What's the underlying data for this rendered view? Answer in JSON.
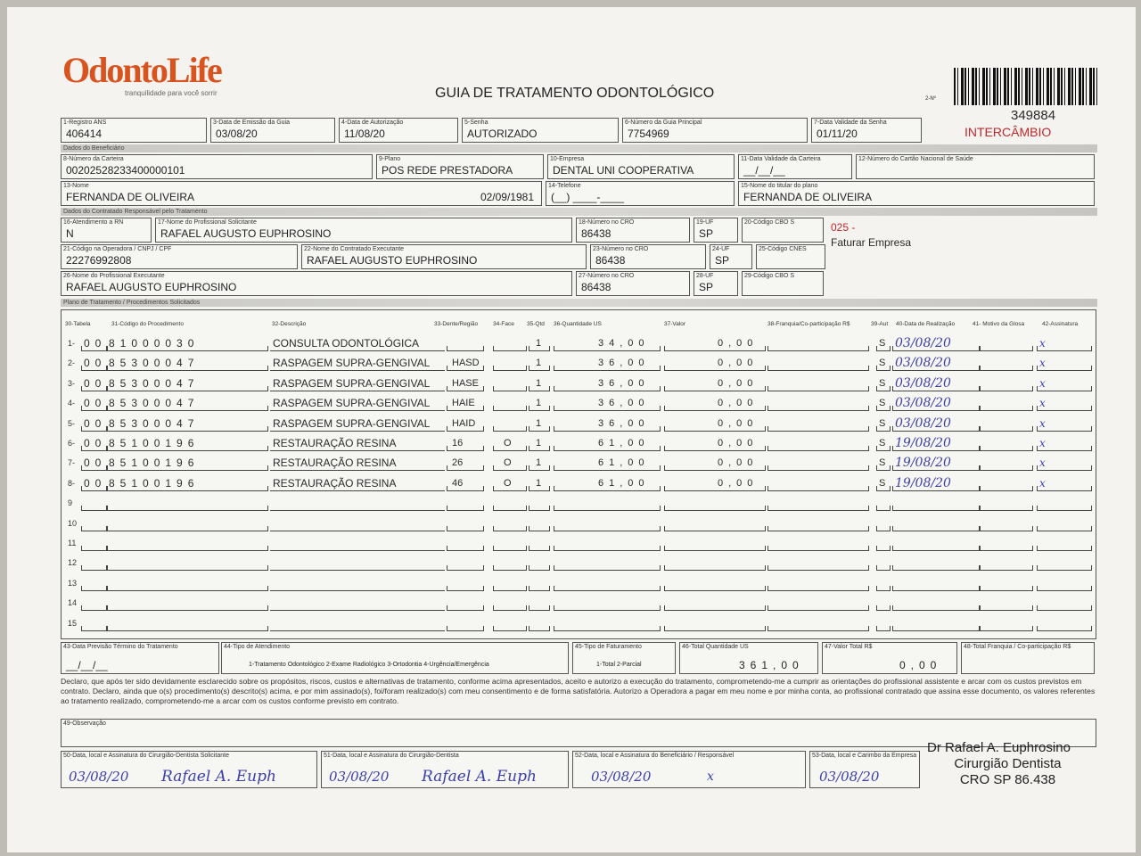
{
  "logo": {
    "brand": "OdontoLife",
    "tagline": "tranquilidade para você sorrir"
  },
  "title": "GUIA DE TRATAMENTO ODONTOLÓGICO",
  "guide_number_label": "2-Nº",
  "guide_number": "349884",
  "intercambio": "INTERCÂMBIO",
  "fields": {
    "registro_ans": {
      "label": "1-Registro ANS",
      "value": "406414"
    },
    "data_emissao": {
      "label": "3-Data de Emissão da Guia",
      "value": "03/08/20"
    },
    "data_autorizacao": {
      "label": "4-Data de Autorização",
      "value": "11/08/20"
    },
    "senha": {
      "label": "5-Senha",
      "value": "AUTORIZADO"
    },
    "guia_principal": {
      "label": "6-Número da Guia Principal",
      "value": "7754969"
    },
    "validade_senha": {
      "label": "7-Data Validade da Senha",
      "value": "01/11/20"
    },
    "carteira": {
      "label": "8-Número da Carteira",
      "value": "00202528233400000101"
    },
    "plano": {
      "label": "9-Plano",
      "value": "POS REDE PRESTADORA"
    },
    "empresa": {
      "label": "10-Empresa",
      "value": "DENTAL UNI  COOPERATIVA"
    },
    "validade_carteira": {
      "label": "11-Data Validade da Carteira",
      "value": "__/__/__"
    },
    "cartao_nacional": {
      "label": "12-Número do Cartão Nacional de Saúde",
      "value": ""
    },
    "nome": {
      "label": "13-Nome",
      "value": "FERNANDA DE OLIVEIRA",
      "birth": "02/09/1981"
    },
    "telefone": {
      "label": "14-Telefone",
      "value": "(__) ____-____"
    },
    "titular": {
      "label": "15-Nome do titular do plano",
      "value": "FERNANDA DE OLIVEIRA"
    },
    "rn": {
      "label": "16-Atendimento a RN",
      "value": "N"
    },
    "solicitante": {
      "label": "17-Nome do Profissional Solicitante",
      "value": "RAFAEL AUGUSTO EUPHROSINO"
    },
    "cro18": {
      "label": "18-Número no CRO",
      "value": "86438"
    },
    "uf19": {
      "label": "19-UF",
      "value": "SP"
    },
    "cbo20": {
      "label": "20-Código CBO S",
      "value": ""
    },
    "codigo_operadora": {
      "label": "21-Código na Operadora / CNPJ / CPF",
      "value": "22276992808"
    },
    "contratado": {
      "label": "22-Nome do Contratado Executante",
      "value": "RAFAEL AUGUSTO EUPHROSINO"
    },
    "cro23": {
      "label": "23-Número no CRO",
      "value": "86438"
    },
    "uf24": {
      "label": "24-UF",
      "value": "SP"
    },
    "cnes25": {
      "label": "25-Código CNES",
      "value": ""
    },
    "executante": {
      "label": "26-Nome do Profissional Executante",
      "value": "RAFAEL AUGUSTO EUPHROSINO"
    },
    "cro27": {
      "label": "27-Número no CRO",
      "value": "86438"
    },
    "uf28": {
      "label": "28-UF",
      "value": "SP"
    },
    "cbo29": {
      "label": "29-Código CBO S",
      "value": ""
    }
  },
  "billing_note": {
    "code": "025 -",
    "text": "Faturar Empresa"
  },
  "sections": {
    "beneficiario": "Dados do Beneficiário",
    "contratado": "Dados do Contratado Responsável pelo Tratamento",
    "plano": "Plano de Tratamento / Procedimentos Solicitados"
  },
  "table": {
    "headers": [
      "30-Tabela",
      "31-Código do Procedimento",
      "32-Descrição",
      "33-Dente/Região",
      "34-Face",
      "35-Qtd",
      "36-Quantidade US",
      "37-Valor",
      "38-Franquia/Co-participação R$",
      "39-Aut",
      "40-Data de Realização",
      "41- Motivo da Glosa",
      "42-Assinatura"
    ],
    "rows": [
      {
        "n": "1-",
        "tabela": "00",
        "codigo": "81000030",
        "descricao": "CONSULTA ODONTOLÓGICA",
        "dente": "",
        "face": "",
        "qtd": "1",
        "us": "34,00",
        "valor": "0,00",
        "franquia": "",
        "aut": "S",
        "data": "03/08/20",
        "glosa": "",
        "assinatura": "x"
      },
      {
        "n": "2-",
        "tabela": "00",
        "codigo": "85300047",
        "descricao": "RASPAGEM SUPRA-GENGIVAL",
        "dente": "HASD",
        "face": "",
        "qtd": "1",
        "us": "36,00",
        "valor": "0,00",
        "franquia": "",
        "aut": "S",
        "data": "03/08/20",
        "glosa": "",
        "assinatura": "x"
      },
      {
        "n": "3-",
        "tabela": "00",
        "codigo": "85300047",
        "descricao": "RASPAGEM SUPRA-GENGIVAL",
        "dente": "HASE",
        "face": "",
        "qtd": "1",
        "us": "36,00",
        "valor": "0,00",
        "franquia": "",
        "aut": "S",
        "data": "03/08/20",
        "glosa": "",
        "assinatura": "x"
      },
      {
        "n": "4-",
        "tabela": "00",
        "codigo": "85300047",
        "descricao": "RASPAGEM SUPRA-GENGIVAL",
        "dente": "HAIE",
        "face": "",
        "qtd": "1",
        "us": "36,00",
        "valor": "0,00",
        "franquia": "",
        "aut": "S",
        "data": "03/08/20",
        "glosa": "",
        "assinatura": "x"
      },
      {
        "n": "5-",
        "tabela": "00",
        "codigo": "85300047",
        "descricao": "RASPAGEM SUPRA-GENGIVAL",
        "dente": "HAID",
        "face": "",
        "qtd": "1",
        "us": "36,00",
        "valor": "0,00",
        "franquia": "",
        "aut": "S",
        "data": "03/08/20",
        "glosa": "",
        "assinatura": "x"
      },
      {
        "n": "6-",
        "tabela": "00",
        "codigo": "85100196",
        "descricao": "RESTAURAÇÃO RESINA",
        "dente": "16",
        "face": "O",
        "qtd": "1",
        "us": "61,00",
        "valor": "0,00",
        "franquia": "",
        "aut": "S",
        "data": "19/08/20",
        "glosa": "",
        "assinatura": "x"
      },
      {
        "n": "7-",
        "tabela": "00",
        "codigo": "85100196",
        "descricao": "RESTAURAÇÃO RESINA",
        "dente": "26",
        "face": "O",
        "qtd": "1",
        "us": "61,00",
        "valor": "0,00",
        "franquia": "",
        "aut": "S",
        "data": "19/08/20",
        "glosa": "",
        "assinatura": "x"
      },
      {
        "n": "8-",
        "tabela": "00",
        "codigo": "85100196",
        "descricao": "RESTAURAÇÃO RESINA",
        "dente": "46",
        "face": "O",
        "qtd": "1",
        "us": "61,00",
        "valor": "0,00",
        "franquia": "",
        "aut": "S",
        "data": "19/08/20",
        "glosa": "",
        "assinatura": "x"
      },
      {
        "n": "9",
        "tabela": "",
        "codigo": "",
        "descricao": "",
        "dente": "",
        "face": "",
        "qtd": "",
        "us": "",
        "valor": "",
        "franquia": "",
        "aut": "",
        "data": "",
        "glosa": "",
        "assinatura": ""
      },
      {
        "n": "10",
        "tabela": "",
        "codigo": "",
        "descricao": "",
        "dente": "",
        "face": "",
        "qtd": "",
        "us": "",
        "valor": "",
        "franquia": "",
        "aut": "",
        "data": "",
        "glosa": "",
        "assinatura": ""
      },
      {
        "n": "11",
        "tabela": "",
        "codigo": "",
        "descricao": "",
        "dente": "",
        "face": "",
        "qtd": "",
        "us": "",
        "valor": "",
        "franquia": "",
        "aut": "",
        "data": "",
        "glosa": "",
        "assinatura": ""
      },
      {
        "n": "12",
        "tabela": "",
        "codigo": "",
        "descricao": "",
        "dente": "",
        "face": "",
        "qtd": "",
        "us": "",
        "valor": "",
        "franquia": "",
        "aut": "",
        "data": "",
        "glosa": "",
        "assinatura": ""
      },
      {
        "n": "13",
        "tabela": "",
        "codigo": "",
        "descricao": "",
        "dente": "",
        "face": "",
        "qtd": "",
        "us": "",
        "valor": "",
        "franquia": "",
        "aut": "",
        "data": "",
        "glosa": "",
        "assinatura": ""
      },
      {
        "n": "14",
        "tabela": "",
        "codigo": "",
        "descricao": "",
        "dente": "",
        "face": "",
        "qtd": "",
        "us": "",
        "valor": "",
        "franquia": "",
        "aut": "",
        "data": "",
        "glosa": "",
        "assinatura": ""
      },
      {
        "n": "15",
        "tabela": "",
        "codigo": "",
        "descricao": "",
        "dente": "",
        "face": "",
        "qtd": "",
        "us": "",
        "valor": "",
        "franquia": "",
        "aut": "",
        "data": "",
        "glosa": "",
        "assinatura": ""
      }
    ]
  },
  "totals": {
    "previsao": {
      "label": "43-Data Previsão Término do Tratamento",
      "value": "__/__/__"
    },
    "tipo_atendimento": {
      "label": "44-Tipo de Atendimento",
      "options": "1-Tratamento Odontológico  2-Exame Radiológico  3-Ortodontia  4-Urgência/Emergência"
    },
    "tipo_faturamento": {
      "label": "45-Tipo de Faturamento",
      "options": "1-Total  2-Parcial"
    },
    "total_us": {
      "label": "46-Total Quantidade US",
      "value": "361,00"
    },
    "valor_total": {
      "label": "47-Valor Total R$",
      "value": "0,00"
    },
    "total_franquia": {
      "label": "48-Total Franquia / Co-participação R$",
      "value": ""
    }
  },
  "declaration": "Declaro, que após ter sido devidamente esclarecido sobre os propósitos, riscos, custos e alternativas de tratamento, conforme acima apresentados, aceito e autorizo a execução do tratamento, comprometendo-me a cumprir as orientações do profissional assistente e arcar com os custos previstos em contrato. Declaro, ainda que o(s) procedimento(s) descrito(s) acima, e por mim assinado(s), foi/foram realizado(s) com meu consentimento e de forma satisfatória. Autorizo a Operadora a pagar em meu nome e por minha conta, ao profissional contratado que assina esse documento, os valores referentes ao tratamento realizado, comprometendo-me a arcar com os custos conforme previsto em contrato.",
  "observacao": {
    "label": "49-Observação",
    "value": ""
  },
  "signatures": {
    "s50": {
      "label": "50-Data, local e Assinatura do Cirurgião-Dentista Solicitante",
      "date": "03/08/20",
      "sign": "Rafael A. Euph"
    },
    "s51": {
      "label": "51-Data, local e Assinatura do Cirurgião-Dentista",
      "date": "03/08/20",
      "sign": "Rafael A. Euph"
    },
    "s52": {
      "label": "52-Data, local e Assinatura do Beneficiário / Responsável",
      "date": "03/08/20",
      "sign": "x"
    },
    "s53": {
      "label": "53-Data, local e Carimbo da Empresa",
      "date": "03/08/20"
    }
  },
  "stamp": {
    "line1": "Dr Rafael A. Euphrosino",
    "line2": "Cirurgião Dentista",
    "line3": "CRO SP 86.438"
  },
  "colors": {
    "brand_orange": "#d9531e",
    "red_text": "#c0282b",
    "ink": "#3c3fa8"
  }
}
